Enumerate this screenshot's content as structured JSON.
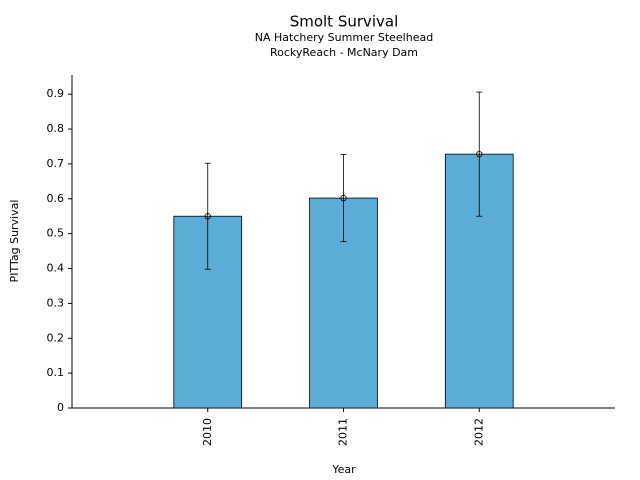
{
  "chart_data": {
    "type": "bar",
    "title": "Smolt Survival",
    "subtitle": [
      "NA Hatchery Summer Steelhead",
      "RockyReach - McNary Dam"
    ],
    "x_label": "Year",
    "y_label": "PITTag Survival",
    "categories": [
      "2010",
      "2011",
      "2012"
    ],
    "values": [
      0.55,
      0.602,
      0.728
    ],
    "errors": [
      0.152,
      0.125,
      0.178
    ],
    "color": "#5bacd6",
    "ylim": [
      0,
      0.955
    ],
    "yticks": [
      0,
      0.1,
      0.2,
      0.3,
      0.4,
      0.5,
      0.6,
      0.7,
      0.8,
      0.9
    ],
    "grid": false
  }
}
